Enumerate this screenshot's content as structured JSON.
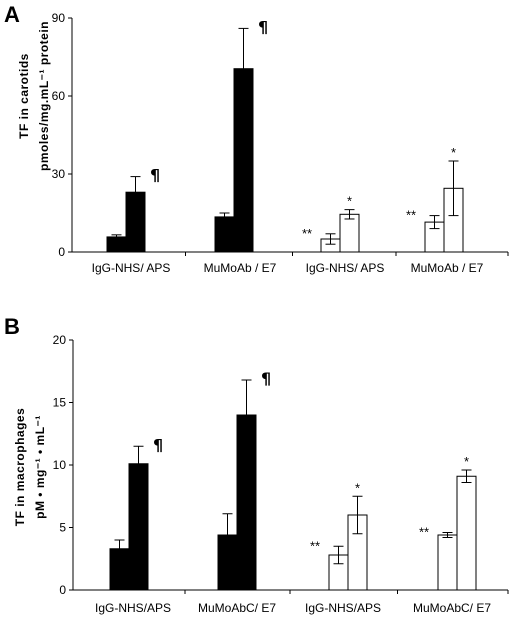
{
  "chart_data": [
    {
      "panel": "A",
      "type": "bar",
      "ylabel_line1": "TF in carotids",
      "ylabel_line2": "pmoles/mg.mL⁻¹ protein",
      "ylim": [
        0,
        90
      ],
      "yticks": [
        0,
        30,
        60,
        90
      ],
      "categories": [
        "IgG-NHS/ APS",
        "MuMoAb / E7",
        "IgG-NHS/ APS",
        "MuMoAb / E7"
      ],
      "series": [
        {
          "fill": "#000000",
          "values": [
            5.8,
            13.5,
            null,
            null
          ],
          "errors": [
            0.8,
            1.5,
            null,
            null
          ],
          "annotations": [
            "",
            "",
            "",
            ""
          ]
        },
        {
          "fill": "#000000",
          "values": [
            23,
            70.5,
            null,
            null
          ],
          "errors": [
            6,
            15.5,
            null,
            null
          ],
          "annotations": [
            "¶",
            "¶",
            "",
            ""
          ]
        },
        {
          "fill": "#ffffff",
          "values": [
            null,
            null,
            5,
            11.5
          ],
          "errors": [
            null,
            null,
            2,
            2.5
          ],
          "annotations": [
            "",
            "",
            "**",
            "**"
          ]
        },
        {
          "fill": "#ffffff",
          "values": [
            null,
            null,
            14.5,
            24.5
          ],
          "errors": [
            null,
            null,
            1.8,
            10.5
          ],
          "annotations": [
            "",
            "",
            "*",
            "*"
          ]
        }
      ]
    },
    {
      "panel": "B",
      "type": "bar",
      "ylabel_line1": "TF in macrophages",
      "ylabel_line2": "pM • mg⁻¹ • mL⁻¹",
      "ylim": [
        0,
        20
      ],
      "yticks": [
        0,
        5,
        10,
        15,
        20
      ],
      "categories": [
        "IgG-NHS/APS",
        "MuMoAbC/ E7",
        "IgG-NHS/APS",
        "MuMoAbC/ E7"
      ],
      "series": [
        {
          "fill": "#000000",
          "values": [
            3.3,
            4.4,
            null,
            null
          ],
          "errors": [
            0.7,
            1.7,
            null,
            null
          ],
          "annotations": [
            "",
            "",
            "",
            ""
          ]
        },
        {
          "fill": "#000000",
          "values": [
            10.1,
            14,
            null,
            null
          ],
          "errors": [
            1.4,
            2.8,
            null,
            null
          ],
          "annotations": [
            "¶",
            "¶",
            "",
            ""
          ]
        },
        {
          "fill": "#ffffff",
          "values": [
            null,
            null,
            2.8,
            4.4
          ],
          "errors": [
            null,
            null,
            0.7,
            0.2
          ],
          "annotations": [
            "",
            "",
            "**",
            "**"
          ]
        },
        {
          "fill": "#ffffff",
          "values": [
            null,
            null,
            6,
            9.1
          ],
          "errors": [
            null,
            null,
            1.5,
            0.5
          ],
          "annotations": [
            "",
            "",
            "*",
            "*"
          ]
        }
      ]
    }
  ]
}
